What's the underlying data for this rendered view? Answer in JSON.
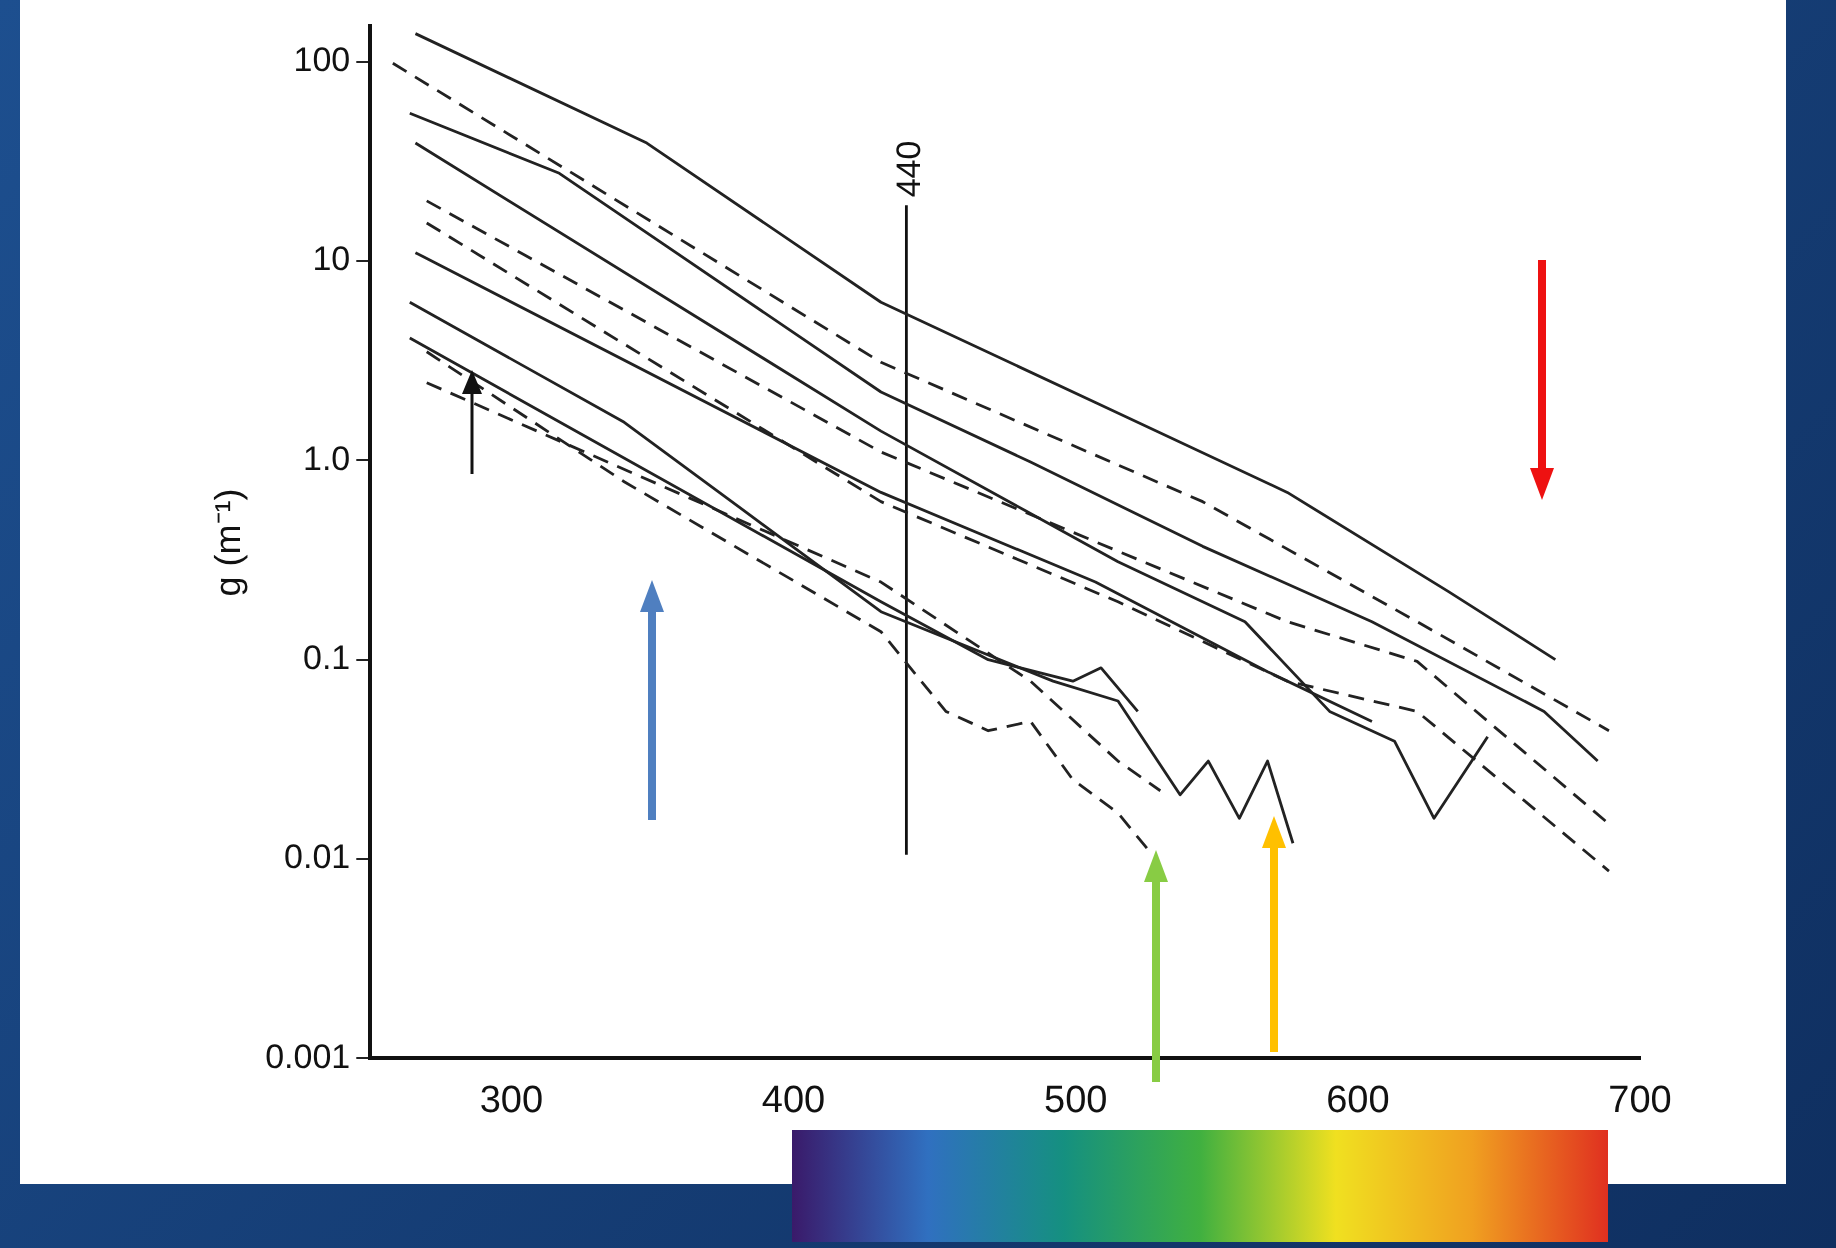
{
  "chart_data": {
    "type": "line",
    "ylabel": "g (m⁻¹)",
    "xlim": [
      250,
      700
    ],
    "xticks": [
      300,
      400,
      500,
      600,
      700
    ],
    "ylim": [
      0.001,
      150
    ],
    "log": "y",
    "yticks": [
      0.001,
      0.01,
      0.1,
      {
        "value": 1,
        "label": "1.0"
      },
      10,
      100
    ],
    "grid": false,
    "legend": false,
    "marker": "none",
    "annotations": [
      {
        "text": "440",
        "x": 440,
        "y": 19
      }
    ],
    "series": [
      {
        "color": "#222222",
        "line_style": "solid",
        "x": [
          266,
          348,
          431,
          507,
          575,
          632,
          670
        ],
        "values": [
          138,
          39,
          6.2,
          1.95,
          0.69,
          0.22,
          0.1
        ]
      },
      {
        "color": "#222222",
        "line_style": "dashed",
        "x": [
          258,
          431,
          545,
          621,
          689
        ],
        "values": [
          98,
          3.1,
          0.62,
          0.155,
          0.044
        ]
      },
      {
        "color": "#222222",
        "line_style": "solid",
        "x": [
          264,
          317,
          431,
          484,
          545,
          605,
          666,
          685
        ],
        "values": [
          55,
          27.5,
          2.2,
          0.98,
          0.37,
          0.155,
          0.055,
          0.031
        ]
      },
      {
        "color": "#222222",
        "line_style": "solid",
        "x": [
          266,
          431,
          515,
          560,
          590,
          613,
          627,
          646
        ],
        "values": [
          39,
          1.4,
          0.31,
          0.155,
          0.055,
          0.039,
          0.016,
          0.041
        ]
      },
      {
        "color": "#222222",
        "line_style": "dashed",
        "x": [
          270,
          431,
          515,
          575,
          621,
          689
        ],
        "values": [
          20,
          1.1,
          0.35,
          0.155,
          0.098,
          0.015
        ]
      },
      {
        "color": "#222222",
        "line_style": "dashed",
        "x": [
          270,
          431,
          515,
          575,
          621,
          689
        ],
        "values": [
          15.5,
          0.62,
          0.195,
          0.078,
          0.055,
          0.0087
        ]
      },
      {
        "color": "#222222",
        "line_style": "solid",
        "x": [
          266,
          431,
          507,
          568,
          605
        ],
        "values": [
          11,
          0.69,
          0.245,
          0.087,
          0.049
        ]
      },
      {
        "color": "#222222",
        "line_style": "solid",
        "x": [
          264,
          340,
          431,
          492,
          515,
          537,
          547,
          558,
          568,
          577
        ],
        "values": [
          6.2,
          1.55,
          0.174,
          0.078,
          0.062,
          0.021,
          0.031,
          0.016,
          0.031,
          0.012
        ]
      },
      {
        "color": "#222222",
        "line_style": "solid",
        "x": [
          264,
          431,
          469,
          499,
          509,
          522
        ],
        "values": [
          4.1,
          0.195,
          0.1,
          0.078,
          0.091,
          0.055
        ]
      },
      {
        "color": "#222222",
        "line_style": "dashed",
        "x": [
          270,
          340,
          431,
          454,
          469,
          484,
          499,
          515,
          526
        ],
        "values": [
          3.5,
          0.78,
          0.138,
          0.055,
          0.044,
          0.049,
          0.025,
          0.017,
          0.011
        ]
      },
      {
        "color": "#222222",
        "line_style": "dashed",
        "x": [
          270,
          431,
          484,
          515,
          530
        ],
        "values": [
          2.45,
          0.245,
          0.078,
          0.031,
          0.022
        ]
      },
      {
        "color": "#111111",
        "line_style": "solid",
        "x": [
          440,
          440
        ],
        "values": [
          0.0105,
          19
        ]
      }
    ]
  }
}
